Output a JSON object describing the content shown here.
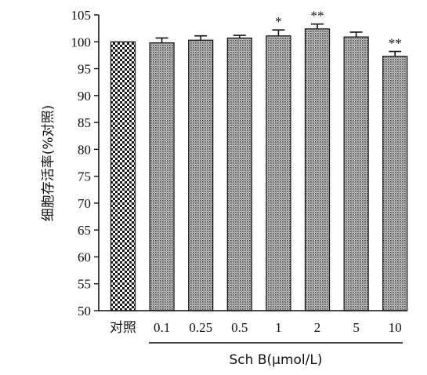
{
  "chart_data": {
    "type": "bar",
    "categories": [
      "对照",
      "0.1",
      "0.25",
      "0.5",
      "1",
      "2",
      "5",
      "10"
    ],
    "values": [
      100,
      99.8,
      100.3,
      100.7,
      101.1,
      102.4,
      100.9,
      97.3
    ],
    "errors": [
      0,
      0.9,
      0.8,
      0.5,
      1.1,
      0.9,
      0.9,
      0.9
    ],
    "significance": [
      "",
      "",
      "",
      "",
      "*",
      "**",
      "",
      "**"
    ],
    "ylabel": "细胞存活率(%对照)",
    "xlabel": "Sch B(μmol/L)",
    "ylim": [
      50,
      105
    ],
    "yticks": [
      50,
      55,
      60,
      65,
      70,
      75,
      80,
      85,
      90,
      95,
      100,
      105
    ],
    "grid": false,
    "colors": {
      "control_fill": "#1a1a1a",
      "bar_fill": "#5a5a5a",
      "axis": "#111111"
    }
  }
}
